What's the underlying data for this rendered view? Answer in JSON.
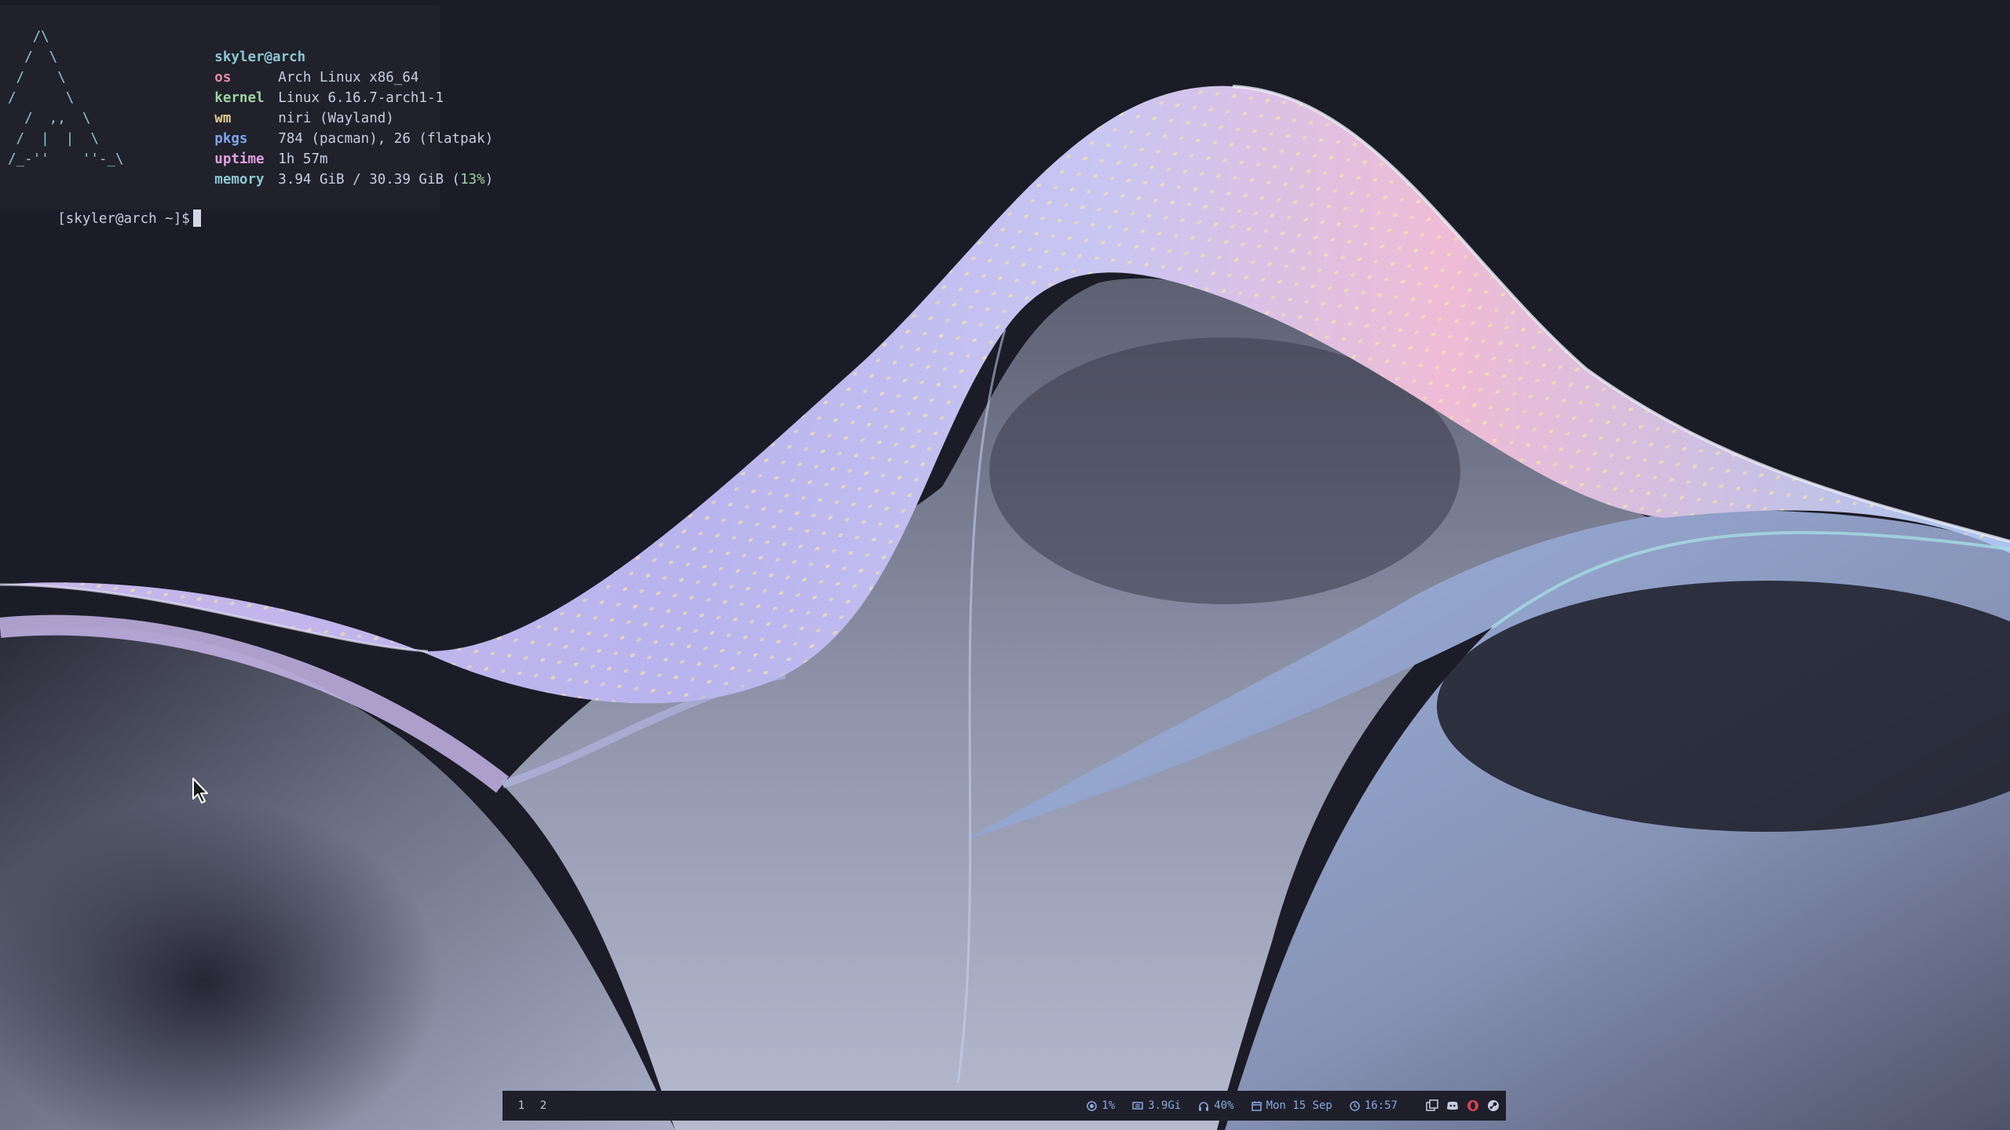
{
  "colors": {
    "background": "#1b1c27",
    "logo": "#8ec7d2",
    "key_os": "#e88aa8",
    "key_kernel": "#9fd3a4",
    "key_wm": "#e3cf94",
    "key_pkgs": "#7fa6e8",
    "key_uptime": "#e0a0e0",
    "key_memory": "#8ec7d2",
    "bar_accent": "#8aa8de"
  },
  "terminal": {
    "ascii_logo": "   /\\\n  /  \\\n /    \\\n/      \\\n  /  ,,  \\\n /  |  |  \\\n/_-''    ''-_\\",
    "user_host": "skyler@arch",
    "fetch": [
      {
        "key": "os",
        "value": "Arch Linux x86_64"
      },
      {
        "key": "kernel",
        "value": "Linux 6.16.7-arch1-1"
      },
      {
        "key": "wm",
        "value": "niri (Wayland)"
      },
      {
        "key": "pkgs",
        "value": "784 (pacman), 26 (flatpak)"
      },
      {
        "key": "uptime",
        "value": "1h 57m"
      },
      {
        "key": "memory",
        "value": "3.94 GiB / 30.39 GiB ("
      }
    ],
    "memory_percent": "13%",
    "memory_close": ")",
    "prompt": "[skyler@arch ~]$"
  },
  "bar": {
    "workspaces": [
      "1",
      "2"
    ],
    "cpu": "1%",
    "mem": "3.9Gi",
    "volume": "40%",
    "date": "Mon 15 Sep",
    "time": "16:57",
    "tray": [
      "window-switcher-icon",
      "discord-icon",
      "opera-icon",
      "steam-icon"
    ]
  }
}
